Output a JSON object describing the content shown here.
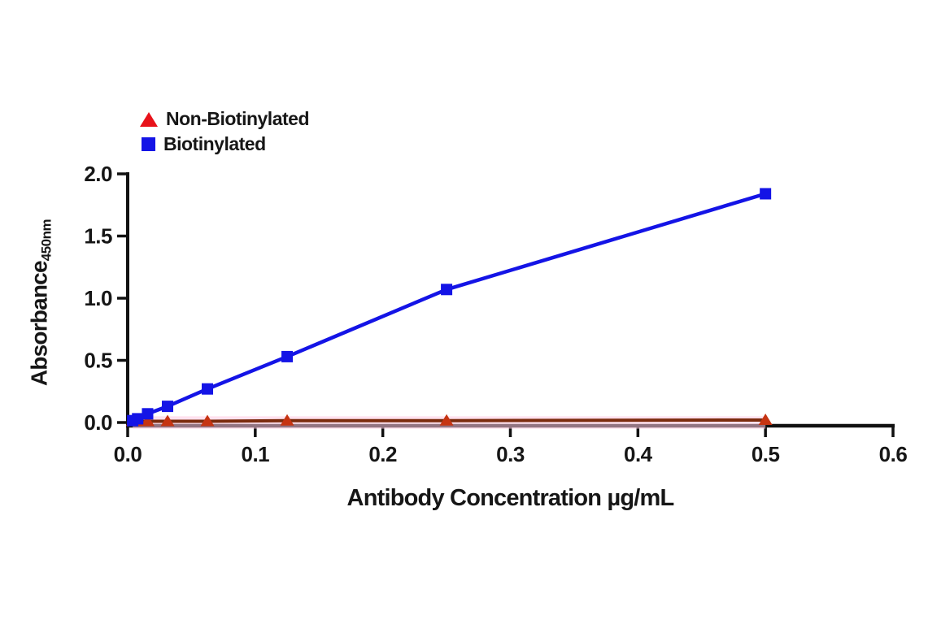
{
  "chart_data": {
    "type": "line",
    "title": "",
    "xlabel": "Antibody Concentration µg/mL",
    "ylabel": "Absorbance",
    "ylabel_subscript": "450nm",
    "xlim": [
      0,
      0.6
    ],
    "ylim": [
      0,
      2.0
    ],
    "x_ticks": [
      0.0,
      0.1,
      0.2,
      0.3,
      0.4,
      0.5,
      0.6
    ],
    "x_tick_labels": [
      "0.0",
      "0.1",
      "0.2",
      "0.3",
      "0.4",
      "0.5",
      "0.6"
    ],
    "y_ticks": [
      0.0,
      0.5,
      1.0,
      1.5,
      2.0
    ],
    "y_tick_labels": [
      "0.0",
      "0.5",
      "1.0",
      "1.5",
      "2.0"
    ],
    "grid": false,
    "axis_color": "#111111",
    "x": [
      0.0039,
      0.0078,
      0.0156,
      0.03125,
      0.0625,
      0.125,
      0.25,
      0.5
    ],
    "series": [
      {
        "name": "Non-Biotinylated",
        "marker": "triangle",
        "marker_color": "#c63412",
        "line_color": "#7b2c0e",
        "values": [
          0.01,
          0.01,
          0.01,
          0.01,
          0.01,
          0.015,
          0.015,
          0.02
        ],
        "band": {
          "low": -0.05,
          "high": 0.05,
          "color": "#ffc9e0",
          "opacity": 0.55
        }
      },
      {
        "name": "Biotinylated",
        "marker": "square",
        "marker_color": "#1414e6",
        "line_color": "#1414e6",
        "values": [
          0.015,
          0.03,
          0.07,
          0.13,
          0.27,
          0.53,
          1.07,
          1.84
        ]
      }
    ],
    "legend": {
      "position": "top-left",
      "items": [
        {
          "label": "Non-Biotinylated",
          "marker": "triangle",
          "color": "#e8121a"
        },
        {
          "label": "Biotinylated",
          "marker": "square",
          "color": "#1414e6"
        }
      ]
    }
  }
}
